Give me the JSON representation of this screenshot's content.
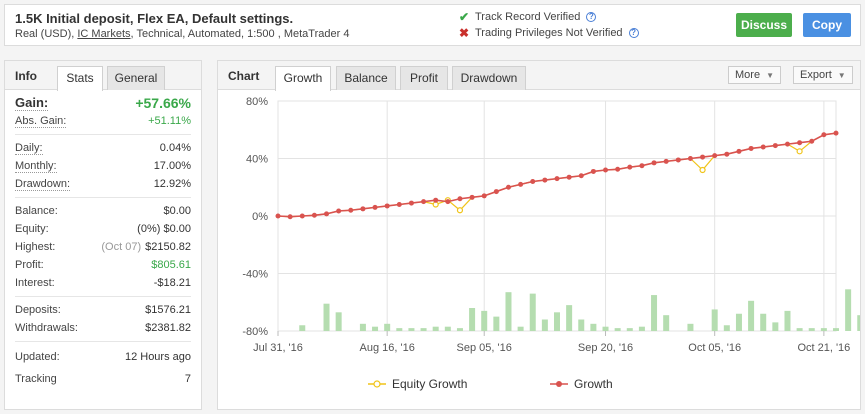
{
  "header": {
    "title": "1.5K Initial deposit, Flex EA, Default settings.",
    "sub_prefix": "Real (USD), ",
    "broker": "IC Markets",
    "sub_suffix": ", Technical, Automated, 1:500 , MetaTrader 4",
    "verified_1": "Track Record Verified",
    "verified_2": "Trading Privileges Not Verified",
    "help_icon": "?",
    "discuss": "Discuss",
    "copy": "Copy"
  },
  "left_tabs": {
    "title": "Info",
    "stats": "Stats",
    "general": "General"
  },
  "stats": {
    "gain_label": "Gain:",
    "gain_value": "+57.66%",
    "abs_gain_label": "Abs. Gain:",
    "abs_gain_value": "+51.11%",
    "daily_label": "Daily:",
    "daily_value": "0.04%",
    "monthly_label": "Monthly:",
    "monthly_value": "17.00%",
    "drawdown_label": "Drawdown:",
    "drawdown_value": "12.92%",
    "balance_label": "Balance:",
    "balance_value": "$0.00",
    "equity_label": "Equity:",
    "equity_pct": "(0%)",
    "equity_value": "$0.00",
    "highest_label": "Highest:",
    "highest_date": "(Oct 07)",
    "highest_value": "$2150.82",
    "profit_label": "Profit:",
    "profit_value": "$805.61",
    "interest_label": "Interest:",
    "interest_value": "-$18.21",
    "deposits_label": "Deposits:",
    "deposits_value": "$1576.21",
    "withdrawals_label": "Withdrawals:",
    "withdrawals_value": "$2381.82",
    "updated_label": "Updated:",
    "updated_value": "12 Hours ago",
    "tracking_label": "Tracking",
    "tracking_value": "7"
  },
  "right_tabs": {
    "title": "Chart",
    "growth": "Growth",
    "balance": "Balance",
    "profit": "Profit",
    "drawdown": "Drawdown",
    "more": "More",
    "export": "Export"
  },
  "chart_data": {
    "type": "line",
    "y_ticks": [
      "80%",
      "40%",
      "0%",
      "-40%",
      "-80%"
    ],
    "ylim": [
      -80,
      80
    ],
    "x_labels": [
      "Jul 31, '16",
      "Aug 16, '16",
      "Sep 05, '16",
      "Sep 20, '16",
      "Oct 05, '16",
      "Oct 21, '16"
    ],
    "x_label_index": [
      0,
      9,
      17,
      27,
      36,
      45
    ],
    "grid": true,
    "legend_position": "bottom",
    "series": [
      {
        "name": "Equity Growth",
        "color": "#f0c419",
        "values": [
          0,
          -0.5,
          0,
          0.5,
          1.5,
          3.5,
          4,
          5,
          6,
          7,
          8,
          9,
          10,
          8,
          11,
          4,
          13,
          14,
          17,
          20,
          22,
          24,
          25,
          26,
          27,
          28,
          31,
          32,
          32.5,
          34,
          35,
          37,
          38,
          39,
          40,
          32,
          42,
          43,
          45,
          47,
          48,
          49,
          50,
          45,
          52,
          56.5,
          57.66
        ]
      },
      {
        "name": "Growth",
        "color": "#d9534f",
        "values": [
          0,
          -0.5,
          0,
          0.5,
          1.5,
          3.5,
          4,
          5,
          6,
          7,
          8,
          9,
          10,
          11,
          10,
          12,
          13,
          14,
          17,
          20,
          22,
          24,
          25,
          26,
          27,
          28,
          31,
          32,
          32.5,
          34,
          35,
          37,
          38,
          39,
          40,
          41,
          42,
          43,
          45,
          47,
          48,
          49,
          50,
          51,
          52,
          56.5,
          57.66
        ]
      }
    ],
    "bars": {
      "color": "#b5ddb0",
      "values": [
        0,
        0,
        4,
        0,
        19,
        13,
        0,
        5,
        3,
        5,
        2,
        2,
        2,
        3,
        3,
        2,
        16,
        14,
        10,
        27,
        3,
        26,
        8,
        13,
        18,
        8,
        5,
        3,
        2,
        2,
        3,
        25,
        11,
        0,
        5,
        0,
        15,
        4,
        12,
        21,
        12,
        6,
        14,
        2,
        2,
        2,
        2,
        29,
        11
      ]
    }
  }
}
